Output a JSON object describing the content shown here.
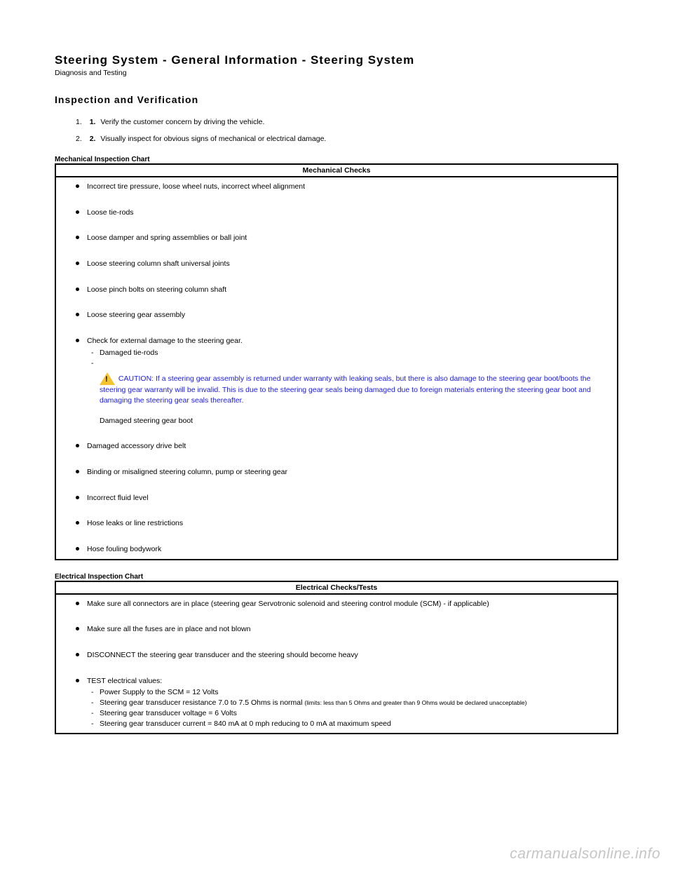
{
  "title": "Steering System - General Information - Steering System",
  "subtitle": "Diagnosis and Testing",
  "section_heading": "Inspection and Verification",
  "steps": [
    {
      "outer": "1.",
      "inner": "1.",
      "text": "Verify the customer concern by driving the vehicle."
    },
    {
      "outer": "2.",
      "inner": "2.",
      "text": "Visually inspect for obvious signs of mechanical or electrical damage."
    }
  ],
  "mechanical": {
    "label": "Mechanical Inspection Chart",
    "header": "Mechanical Checks",
    "items": [
      "Incorrect tire pressure, loose wheel nuts, incorrect wheel alignment",
      "Loose tie-rods",
      "Loose damper and spring assemblies or ball joint",
      "Loose steering column shaft universal joints",
      "Loose pinch bolts on steering column shaft",
      "Loose steering gear assembly"
    ],
    "damage_item": "Check for external damage to the steering gear.",
    "damage_sub1": "Damaged tie-rods",
    "caution_label": "CAUTION: ",
    "caution_text": "If a steering gear assembly is returned under warranty with leaking seals, but there is also damage to the steering gear boot/boots the steering gear warranty will be invalid. This is due to the steering gear seals being damaged due to foreign materials entering the steering gear boot and damaging the steering gear seals thereafter.",
    "post_caution": "Damaged steering gear boot",
    "items_after": [
      "Damaged accessory drive belt",
      "Binding or misaligned steering column, pump or steering gear",
      "Incorrect fluid level",
      "Hose leaks or line restrictions",
      "Hose fouling bodywork"
    ]
  },
  "electrical": {
    "label": "Electrical Inspection Chart",
    "header": "Electrical Checks/Tests",
    "item1": "Make sure all connectors are in place (steering gear Servotronic solenoid and steering control module (SCM) - if applicable)",
    "item2": "Make sure all the fuses are in place and not blown",
    "item3": "DISCONNECT the steering gear transducer and the steering should become heavy",
    "item4": "TEST electrical values:",
    "sub1": "Power Supply to the SCM = 12 Volts",
    "sub2a": "Steering gear transducer resistance 7.0 to 7.5 Ohms is normal ",
    "sub2b": "(limits: less than 5 Ohms and greater than 9 Ohms would be declared unacceptable)",
    "sub3": "Steering gear transducer voltage = 6 Volts",
    "sub4": "Steering gear transducer current = 840 mA at 0 mph reducing to 0 mA at maximum speed"
  },
  "watermark": "carmanualsonline.info",
  "colors": {
    "caution_text": "#1a1aee",
    "caution_triangle": "#f4c430",
    "watermark": "rgba(150,150,150,0.55)"
  }
}
